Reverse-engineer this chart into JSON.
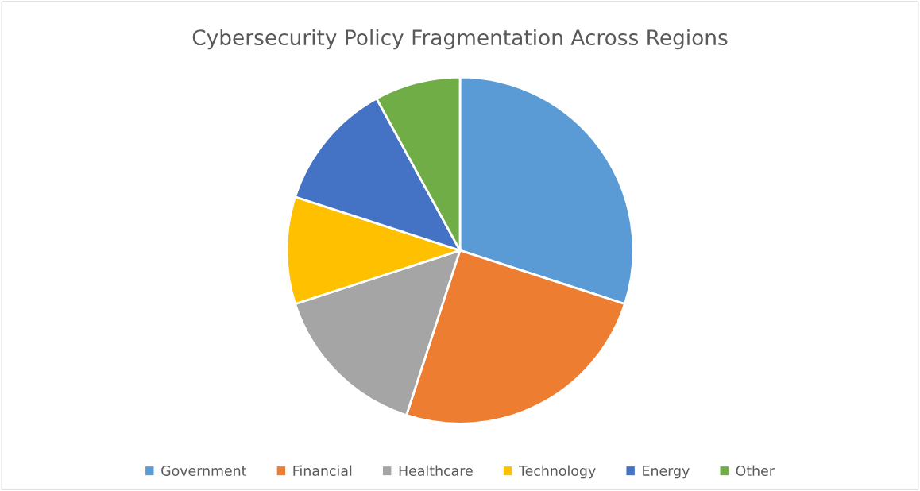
{
  "chart_data": {
    "type": "pie",
    "title": "Cybersecurity Policy Fragmentation Across Regions",
    "categories": [
      "Government",
      "Financial",
      "Healthcare",
      "Technology",
      "Energy",
      "Other"
    ],
    "values": [
      30,
      25,
      15,
      10,
      12,
      8
    ],
    "colors": [
      "#5b9bd5",
      "#ed7d31",
      "#a5a5a5",
      "#ffc000",
      "#4472c4",
      "#70ad47"
    ],
    "legend": "bottom"
  }
}
